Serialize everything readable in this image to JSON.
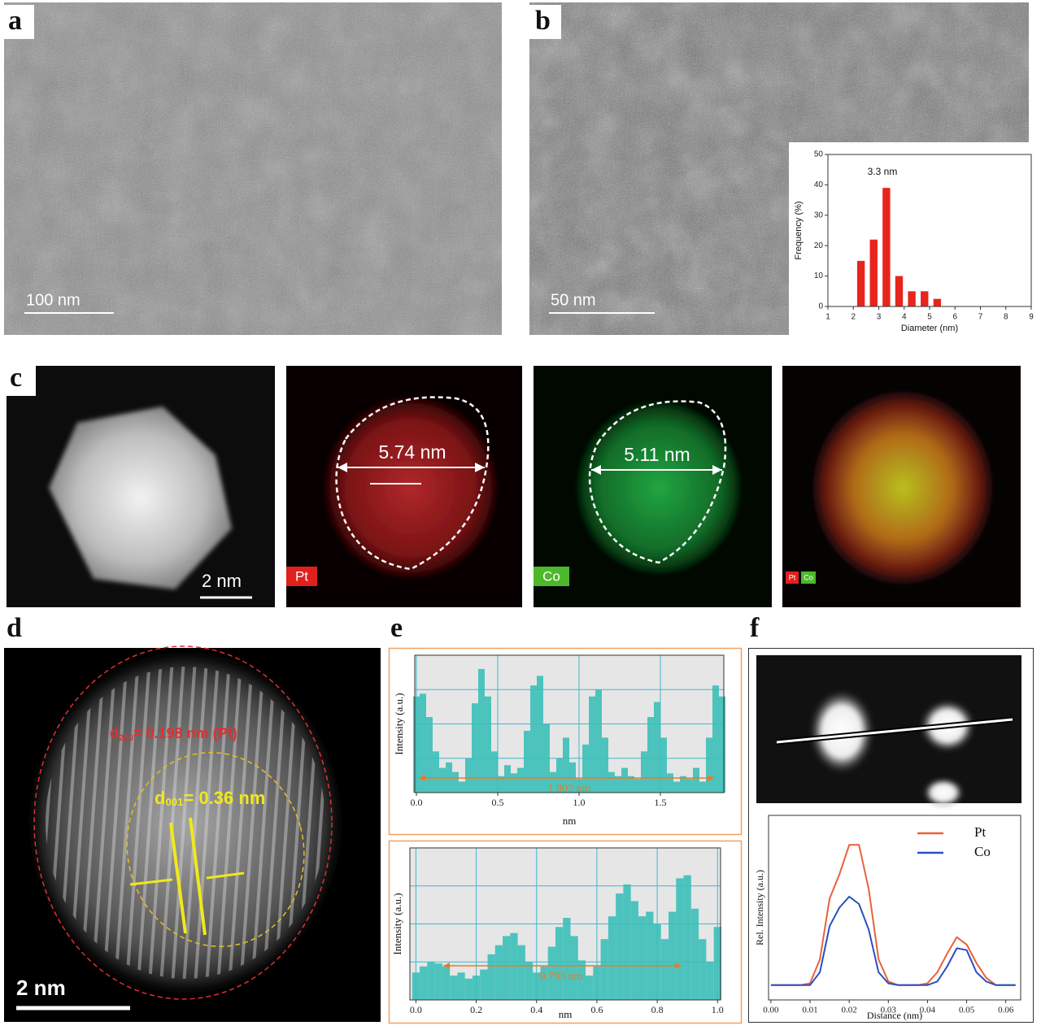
{
  "panels": {
    "a": {
      "label": "a",
      "scale_bar": "100 nm"
    },
    "b": {
      "label": "b",
      "scale_bar": "50 nm"
    },
    "c": {
      "label": "c",
      "scale_bar": "2 nm",
      "pt_width": "5.74 nm",
      "co_width": "5.11 nm",
      "pt_tag": "Pt",
      "co_tag": "Co",
      "overlay_pt": "Pt",
      "overlay_co": "Co"
    },
    "d": {
      "label": "d",
      "scale_bar": "2 nm",
      "pt_spacing": {
        "d": "d",
        "sub": "200",
        "rest": "= 0.198 nm (Pt)"
      },
      "co_spacing": {
        "d": "d",
        "sub": "001",
        "rest": "= 0.36 nm"
      }
    },
    "e": {
      "label": "e"
    },
    "f": {
      "label": "f"
    }
  },
  "chart_data": [
    {
      "type": "bar",
      "xlabel": "Diameter (nm)",
      "ylabel": "Frequency (%)",
      "annotation": "3.3 nm",
      "color": "#e8241c",
      "x": [
        2.3,
        2.8,
        3.3,
        3.8,
        4.3,
        4.8,
        5.3
      ],
      "values": [
        15,
        22,
        39,
        10,
        5,
        5,
        2.5
      ],
      "xlim": [
        1,
        9
      ],
      "xticks": [
        1,
        2,
        3,
        4,
        5,
        6,
        7,
        8,
        9
      ],
      "ylim": [
        0,
        50
      ],
      "yticks": [
        0,
        10,
        20,
        30,
        40,
        50
      ]
    },
    {
      "type": "profile",
      "xlabel": "nm",
      "ylabel": "Intensity (a.u.)",
      "annotation": "1.802 nm",
      "color": "#3cbfb8",
      "grid": true,
      "x": [
        0,
        0.04,
        0.08,
        0.12,
        0.16,
        0.2,
        0.24,
        0.28,
        0.32,
        0.36,
        0.4,
        0.44,
        0.48,
        0.52,
        0.56,
        0.6,
        0.64,
        0.68,
        0.72,
        0.76,
        0.8,
        0.84,
        0.88,
        0.92,
        0.96,
        1,
        1.04,
        1.08,
        1.12,
        1.16,
        1.2,
        1.24,
        1.28,
        1.32,
        1.36,
        1.4,
        1.44,
        1.48,
        1.52,
        1.56,
        1.6,
        1.64,
        1.68,
        1.72,
        1.76,
        1.8,
        1.84,
        1.88
      ],
      "values": [
        70,
        72,
        55,
        30,
        18,
        22,
        15,
        8,
        25,
        65,
        90,
        70,
        30,
        12,
        20,
        14,
        18,
        45,
        78,
        85,
        50,
        15,
        25,
        40,
        22,
        10,
        35,
        70,
        75,
        40,
        15,
        12,
        18,
        12,
        10,
        30,
        55,
        66,
        40,
        14,
        8,
        12,
        10,
        18,
        8,
        40,
        78,
        70
      ],
      "xlim": [
        -0.01,
        1.89
      ],
      "xticks": [
        {
          "value": 0,
          "label": "0.0"
        },
        0.5,
        {
          "value": 1,
          "label": "1.0"
        },
        1.5
      ],
      "ylim": [
        0,
        100
      ]
    },
    {
      "type": "profile",
      "xlabel": "nm",
      "ylabel": "Intensity (a.u.)",
      "annotation": "0.793 nm",
      "color": "#3cbfb8",
      "grid": true,
      "x": [
        0,
        0.025,
        0.05,
        0.075,
        0.1,
        0.125,
        0.15,
        0.175,
        0.2,
        0.225,
        0.25,
        0.275,
        0.3,
        0.325,
        0.35,
        0.375,
        0.4,
        0.425,
        0.45,
        0.475,
        0.5,
        0.525,
        0.55,
        0.575,
        0.6,
        0.625,
        0.65,
        0.675,
        0.7,
        0.725,
        0.75,
        0.775,
        0.8,
        0.825,
        0.85,
        0.875,
        0.9,
        0.925,
        0.95,
        0.975,
        1
      ],
      "values": [
        18,
        22,
        25,
        24,
        22,
        16,
        18,
        14,
        16,
        20,
        30,
        36,
        42,
        44,
        36,
        25,
        18,
        22,
        35,
        48,
        54,
        42,
        26,
        16,
        22,
        40,
        55,
        70,
        76,
        65,
        55,
        58,
        50,
        40,
        58,
        80,
        82,
        60,
        40,
        25,
        48
      ],
      "xlim": [
        -0.02,
        1.01
      ],
      "xticks": [
        {
          "value": 0,
          "label": "0.0"
        },
        0.2,
        0.4,
        0.6,
        0.8,
        {
          "value": 1,
          "label": "1.0"
        }
      ],
      "ylim": [
        0,
        100
      ]
    },
    {
      "type": "line",
      "xlabel": "Distance (nm)",
      "ylabel": "Rel. Intensity (a.u.)",
      "x": [
        0,
        0.0025,
        0.005,
        0.0075,
        0.01,
        0.0125,
        0.015,
        0.0175,
        0.02,
        0.0225,
        0.025,
        0.0275,
        0.03,
        0.0325,
        0.035,
        0.0375,
        0.04,
        0.0425,
        0.045,
        0.0475,
        0.05,
        0.0525,
        0.055,
        0.0575,
        0.06,
        0.0625
      ],
      "series": [
        {
          "name": "Pt",
          "color": "#e8623a",
          "values": [
            8,
            8,
            8,
            8,
            9,
            22,
            55,
            68,
            84,
            84,
            60,
            22,
            10,
            8,
            8,
            8,
            9,
            15,
            25,
            34,
            30,
            20,
            12,
            8,
            8,
            8
          ]
        },
        {
          "name": "Co",
          "color": "#2b4fc1",
          "values": [
            8,
            8,
            8,
            8,
            8,
            15,
            40,
            50,
            56,
            52,
            38,
            15,
            9,
            8,
            8,
            8,
            8,
            10,
            18,
            28,
            27,
            15,
            10,
            8,
            8,
            8
          ]
        }
      ],
      "xlim": [
        -0.0006,
        0.0638
      ],
      "xticks": [
        {
          "value": 0,
          "label": "0.00"
        },
        {
          "value": 0.01,
          "label": "0.01"
        },
        {
          "value": 0.02,
          "label": "0.02"
        },
        {
          "value": 0.03,
          "label": "0.03"
        },
        {
          "value": 0.04,
          "label": "0.04"
        },
        {
          "value": 0.05,
          "label": "0.05"
        },
        {
          "value": 0.06,
          "label": "0.06"
        }
      ],
      "ylim": [
        0,
        100
      ]
    }
  ]
}
